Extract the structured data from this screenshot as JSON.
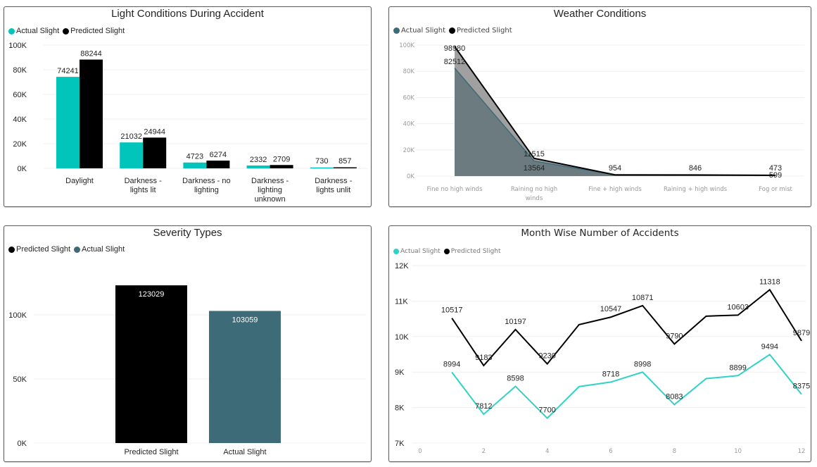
{
  "colors": {
    "actual_teal": "#01C5BB",
    "predicted_black": "#000000",
    "actual_slate": "#3E6B78",
    "weather_actual_fill": "#6B7B80",
    "weather_predicted_fill": "#A0A0A0",
    "month_actual_line": "#2ED3C6",
    "gridline": "#EFEFEF"
  },
  "chart_data": [
    {
      "id": "light",
      "type": "bar",
      "title": "Light Conditions During Accident",
      "legend": [
        "Actual Slight",
        "Predicted Slight"
      ],
      "legend_placement": "top-left",
      "categories": [
        "Daylight",
        "Darkness - lights lit",
        "Darkness - no lighting",
        "Darkness - lighting unknown",
        "Darkness - lights unlit"
      ],
      "category_lines": [
        [
          "Daylight"
        ],
        [
          "Darkness -",
          "lights lit"
        ],
        [
          "Darkness - no",
          "lighting"
        ],
        [
          "Darkness -",
          "lighting",
          "unknown"
        ],
        [
          "Darkness -",
          "lights unlit"
        ]
      ],
      "series": [
        {
          "name": "Actual Slight",
          "values": [
            74241,
            21032,
            4723,
            2332,
            730
          ]
        },
        {
          "name": "Predicted Slight",
          "values": [
            88244,
            24944,
            6274,
            2709,
            857
          ]
        }
      ],
      "yticks": [
        "0K",
        "20K",
        "40K",
        "60K",
        "80K",
        "100K"
      ],
      "ylim": [
        0,
        100000
      ],
      "grid": true,
      "xlabel": "",
      "ylabel": ""
    },
    {
      "id": "weather",
      "type": "area",
      "title": "Weather Conditions",
      "legend": [
        "Actual Slight",
        "Predicted Slight"
      ],
      "legend_placement": "top-left",
      "categories": [
        "Fine no high winds",
        "Raining no high winds",
        "Fine + high winds",
        "Raining + high winds",
        "Fog or mist"
      ],
      "category_lines": [
        [
          "Fine no high winds"
        ],
        [
          "Raining no high",
          "winds"
        ],
        [
          "Fine + high winds"
        ],
        [
          "Raining + high winds"
        ],
        [
          "Fog or mist"
        ]
      ],
      "series": [
        {
          "name": "Actual Slight",
          "values": [
            82512,
            11515,
            954,
            846,
            473
          ]
        },
        {
          "name": "Predicted Slight",
          "values": [
            98980,
            13564,
            954,
            846,
            599
          ]
        }
      ],
      "data_labels": [
        {
          "text": "98980"
        },
        {
          "text": "82512"
        },
        {
          "text": "11515"
        },
        {
          "text": "13564"
        },
        {
          "text": "954"
        },
        {
          "text": "846"
        },
        {
          "text": "473"
        },
        {
          "text": "599"
        }
      ],
      "yticks": [
        "0K",
        "20K",
        "40K",
        "60K",
        "80K",
        "100K"
      ],
      "ylim": [
        0,
        100000
      ],
      "grid": true,
      "xlabel": "",
      "ylabel": ""
    },
    {
      "id": "severity",
      "type": "bar",
      "title": "Severity Types",
      "legend": [
        "Predicted Slight",
        "Actual Slight"
      ],
      "legend_placement": "top-left",
      "categories": [
        "Predicted Slight",
        "Actual Slight"
      ],
      "values": [
        123029,
        103059
      ],
      "yticks": [
        "0K",
        "50K",
        "100K"
      ],
      "ylim": [
        0,
        135000
      ],
      "grid": true,
      "xlabel": "",
      "ylabel": ""
    },
    {
      "id": "month",
      "type": "line",
      "title": "Month Wise Number of Accidents",
      "legend": [
        "Actual Slight",
        "Predicted Slight"
      ],
      "legend_placement": "top-left",
      "x": [
        1,
        2,
        3,
        4,
        5,
        6,
        7,
        8,
        9,
        10,
        11,
        12
      ],
      "series": [
        {
          "name": "Actual Slight",
          "values": [
            8994,
            7812,
            8598,
            7700,
            8590,
            8718,
            8998,
            8083,
            8815,
            8899,
            9494,
            8375
          ],
          "labels": [
            "8994",
            "7812",
            "8598",
            "7700",
            "",
            "8718",
            "8998",
            "8083",
            "",
            "8899",
            "9494",
            "8375"
          ]
        },
        {
          "name": "Predicted Slight",
          "values": [
            10517,
            9183,
            10197,
            9230,
            10335,
            10547,
            10871,
            9790,
            10575,
            10603,
            11318,
            9879
          ],
          "labels": [
            "10517",
            "9183",
            "10197",
            "9230",
            "",
            "10547",
            "10871",
            "9790",
            "",
            "10603",
            "11318",
            "9879"
          ]
        }
      ],
      "xticks": [
        "0",
        "2",
        "4",
        "6",
        "8",
        "10",
        "12"
      ],
      "xlim": [
        0,
        12
      ],
      "yticks": [
        "7K",
        "8K",
        "9K",
        "10K",
        "11K",
        "12K"
      ],
      "ylim": [
        7000,
        12000
      ],
      "grid": true,
      "xlabel": "",
      "ylabel": ""
    }
  ]
}
